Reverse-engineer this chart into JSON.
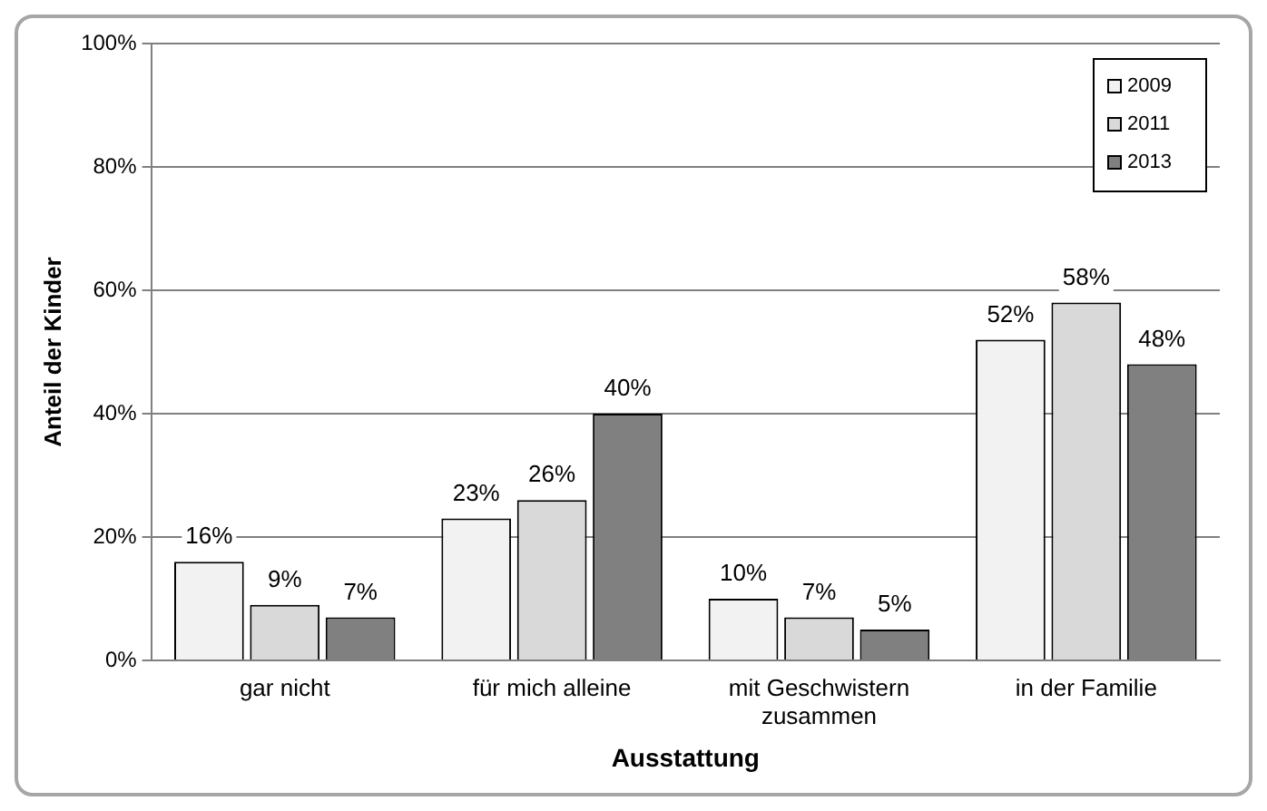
{
  "chart_data": {
    "type": "bar",
    "xlabel": "Ausstattung",
    "ylabel": "Anteil der Kinder",
    "categories": [
      "gar nicht",
      "für mich alleine",
      "mit Geschwistern zusammen",
      "in der Familie"
    ],
    "series": [
      {
        "name": "2009",
        "color": "#f2f2f2",
        "values": [
          16,
          23,
          10,
          52
        ],
        "value_labels": [
          "16%",
          "23%",
          "10%",
          "52%"
        ]
      },
      {
        "name": "2011",
        "color": "#d9d9d9",
        "values": [
          9,
          26,
          7,
          58
        ],
        "value_labels": [
          "9%",
          "26%",
          "7%",
          "58%"
        ]
      },
      {
        "name": "2013",
        "color": "#808080",
        "values": [
          7,
          40,
          5,
          48
        ],
        "value_labels": [
          "7%",
          "40%",
          "5%",
          "48%"
        ]
      }
    ],
    "ylim": [
      0,
      100
    ],
    "yticks": [
      {
        "value": 0,
        "label": "0%"
      },
      {
        "value": 20,
        "label": "20%"
      },
      {
        "value": 40,
        "label": "40%"
      },
      {
        "value": 60,
        "label": "60%"
      },
      {
        "value": 80,
        "label": "80%"
      },
      {
        "value": 100,
        "label": "100%"
      }
    ],
    "grid": "y",
    "legend": "top right"
  }
}
